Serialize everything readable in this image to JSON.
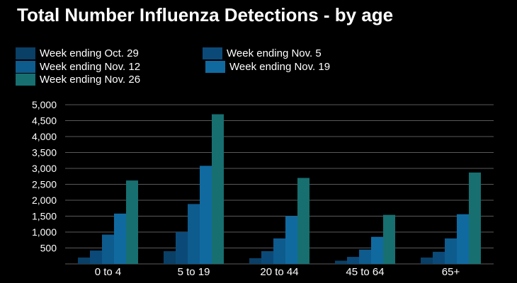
{
  "chart_data": {
    "type": "bar",
    "title": "Total Number Influenza Detections - by age",
    "xlabel": "",
    "ylabel": "",
    "categories": [
      "0 to 4",
      "5 to 19",
      "20 to 44",
      "45 to 64",
      "65+"
    ],
    "series": [
      {
        "name": "Week ending Oct. 29",
        "color": "#0a3f66",
        "values": [
          200,
          400,
          180,
          100,
          200
        ]
      },
      {
        "name": "Week ending Nov. 5",
        "color": "#0b4a78",
        "values": [
          420,
          1000,
          400,
          220,
          380
        ]
      },
      {
        "name": "Week ending Nov. 12",
        "color": "#0e5b8e",
        "values": [
          920,
          1880,
          800,
          450,
          800
        ]
      },
      {
        "name": "Week ending Nov. 19",
        "color": "#106aa0",
        "values": [
          1580,
          3080,
          1500,
          850,
          1560
        ]
      },
      {
        "name": "Week ending Nov. 26",
        "color": "#176f70",
        "values": [
          2620,
          4700,
          2700,
          1540,
          2870
        ]
      }
    ],
    "ylim": [
      0,
      5000
    ],
    "yticks": [
      500,
      1000,
      1500,
      2000,
      2500,
      3000,
      3500,
      4000,
      4500,
      5000
    ],
    "ytick_labels": [
      "500",
      "1,000",
      "1,500",
      "2,000",
      "2,500",
      "3,000",
      "3,500",
      "4,000",
      "4,500",
      "5,000"
    ],
    "grid": true,
    "legend_position": "top-left"
  }
}
